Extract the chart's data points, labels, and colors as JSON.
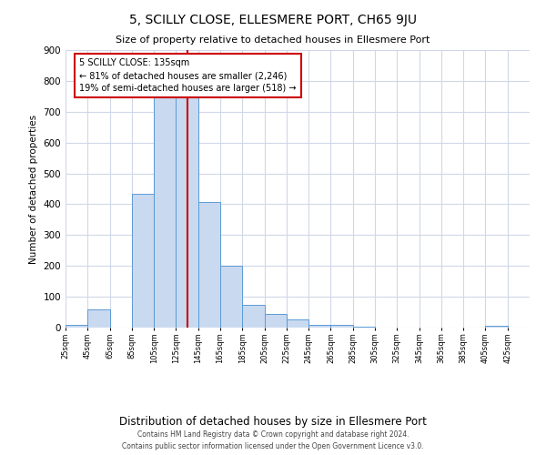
{
  "title": "5, SCILLY CLOSE, ELLESMERE PORT, CH65 9JU",
  "subtitle": "Size of property relative to detached houses in Ellesmere Port",
  "xlabel": "Distribution of detached houses by size in Ellesmere Port",
  "ylabel": "Number of detached properties",
  "bar_edges": [
    25,
    45,
    65,
    85,
    105,
    125,
    145,
    165,
    185,
    205,
    225,
    245,
    265,
    285,
    305,
    325,
    345,
    365,
    385,
    405,
    425
  ],
  "bar_heights": [
    10,
    58,
    0,
    435,
    750,
    750,
    408,
    200,
    75,
    43,
    28,
    8,
    8,
    3,
    0,
    0,
    0,
    0,
    0,
    5,
    0
  ],
  "bar_color": "#c9d9f0",
  "bar_edge_color": "#5b9bd5",
  "background_color": "#ffffff",
  "grid_color": "#d0d8e8",
  "vline_x": 135,
  "vline_color": "#cc0000",
  "annotation_title": "5 SCILLY CLOSE: 135sqm",
  "annotation_line1": "← 81% of detached houses are smaller (2,246)",
  "annotation_line2": "19% of semi-detached houses are larger (518) →",
  "annotation_box_color": "#ffffff",
  "annotation_box_edge_color": "#cc0000",
  "ylim": [
    0,
    900
  ],
  "yticks": [
    0,
    100,
    200,
    300,
    400,
    500,
    600,
    700,
    800,
    900
  ],
  "footer_line1": "Contains HM Land Registry data © Crown copyright and database right 2024.",
  "footer_line2": "Contains public sector information licensed under the Open Government Licence v3.0."
}
